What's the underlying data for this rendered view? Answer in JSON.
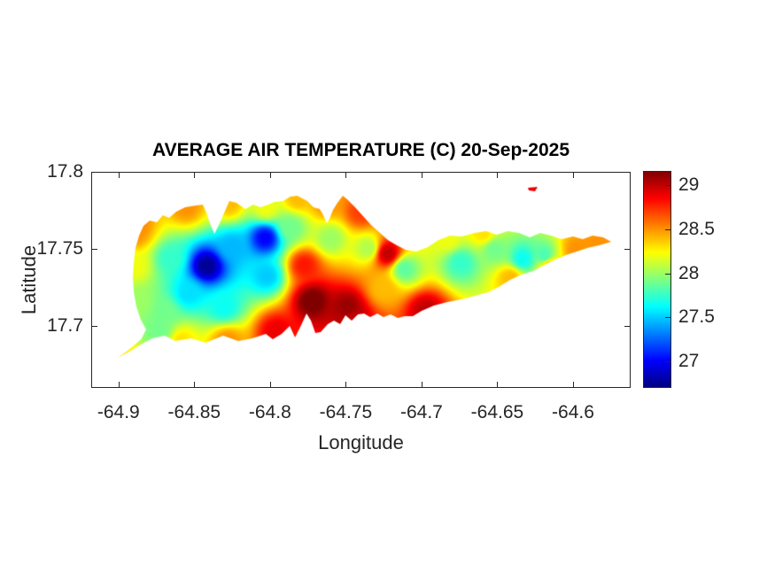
{
  "figure": {
    "title": "AVERAGE AIR TEMPERATURE (C) 20-Sep-2025",
    "background": "#ffffff"
  },
  "axes": {
    "xlabel": "Longitude",
    "ylabel": "Latitude",
    "xlim": [
      -64.918,
      -64.562
    ],
    "ylim": [
      17.66,
      17.8
    ],
    "xticks": [
      -64.9,
      -64.85,
      -64.8,
      -64.75,
      -64.7,
      -64.65,
      -64.6
    ],
    "xtick_labels": [
      "-64.9",
      "-64.85",
      "-64.8",
      "-64.75",
      "-64.7",
      "-64.65",
      "-64.6"
    ],
    "yticks": [
      17.8,
      17.75,
      17.7
    ],
    "ytick_labels": [
      "17.8",
      "17.75",
      "17.7"
    ],
    "axis_color": "#262626",
    "grid": false
  },
  "colorbar": {
    "colormap": "jet",
    "vmin": 26.7,
    "vmax": 29.16,
    "ticks": [
      29,
      28.5,
      28,
      27.5,
      27
    ],
    "tick_labels": [
      "29",
      "28.5",
      "28",
      "27.5",
      "27"
    ],
    "location": "right"
  },
  "chart_data": {
    "type": "heatmap",
    "title": "AVERAGE AIR TEMPERATURE (C) 20-Sep-2025",
    "xlabel": "Longitude",
    "ylabel": "Latitude",
    "units": "C",
    "value_range": [
      26.7,
      29.16
    ],
    "island_polygons": [
      [
        [
          -64.9005,
          17.6795
        ],
        [
          -64.8929,
          17.6835
        ],
        [
          -64.8853,
          17.6881
        ],
        [
          -64.8777,
          17.6921
        ],
        [
          -64.8695,
          17.6938
        ],
        [
          -64.8625,
          17.6904
        ],
        [
          -64.8519,
          17.6921
        ],
        [
          -64.8426,
          17.6893
        ],
        [
          -64.8309,
          17.6938
        ],
        [
          -64.821,
          17.6904
        ],
        [
          -64.8116,
          17.6921
        ],
        [
          -64.8028,
          17.695
        ],
        [
          -64.7982,
          17.6916
        ],
        [
          -64.7923,
          17.695
        ],
        [
          -64.787,
          17.7002
        ],
        [
          -64.7835,
          17.6927
        ],
        [
          -64.7794,
          17.7007
        ],
        [
          -64.7759,
          17.7082
        ],
        [
          -64.773,
          17.7036
        ],
        [
          -64.7701,
          17.6956
        ],
        [
          -64.7666,
          17.6961
        ],
        [
          -64.7619,
          17.7013
        ],
        [
          -64.7578,
          17.7036
        ],
        [
          -64.7537,
          17.7013
        ],
        [
          -64.7502,
          17.707
        ],
        [
          -64.7461,
          17.7036
        ],
        [
          -64.742,
          17.7076
        ],
        [
          -64.7379,
          17.7082
        ],
        [
          -64.7339,
          17.7059
        ],
        [
          -64.7292,
          17.7082
        ],
        [
          -64.7251,
          17.7059
        ],
        [
          -64.7204,
          17.7076
        ],
        [
          -64.7157,
          17.7053
        ],
        [
          -64.7111,
          17.7065
        ],
        [
          -64.7058,
          17.7065
        ],
        [
          -64.6999,
          17.7099
        ],
        [
          -64.6918,
          17.7134
        ],
        [
          -64.683,
          17.7157
        ],
        [
          -64.6736,
          17.7174
        ],
        [
          -64.6649,
          17.7197
        ],
        [
          -64.6561,
          17.722
        ],
        [
          -64.6491,
          17.7254
        ],
        [
          -64.6415,
          17.73
        ],
        [
          -64.6339,
          17.7334
        ],
        [
          -64.6263,
          17.7357
        ],
        [
          -64.6187,
          17.7398
        ],
        [
          -64.6117,
          17.7432
        ],
        [
          -64.6047,
          17.7461
        ],
        [
          -64.5976,
          17.7484
        ],
        [
          -64.5906,
          17.7507
        ],
        [
          -64.583,
          17.7524
        ],
        [
          -64.5748,
          17.7547
        ],
        [
          -64.5801,
          17.7575
        ],
        [
          -64.5871,
          17.7587
        ],
        [
          -64.5936,
          17.7564
        ],
        [
          -64.6,
          17.7581
        ],
        [
          -64.6076,
          17.7564
        ],
        [
          -64.6146,
          17.7587
        ],
        [
          -64.6216,
          17.7604
        ],
        [
          -64.6286,
          17.7575
        ],
        [
          -64.6356,
          17.7604
        ],
        [
          -64.6432,
          17.7616
        ],
        [
          -64.6503,
          17.7593
        ],
        [
          -64.6573,
          17.7616
        ],
        [
          -64.6649,
          17.7604
        ],
        [
          -64.6736,
          17.7581
        ],
        [
          -64.6812,
          17.7587
        ],
        [
          -64.6888,
          17.7558
        ],
        [
          -64.6959,
          17.7512
        ],
        [
          -64.7035,
          17.7484
        ],
        [
          -64.7105,
          17.7495
        ],
        [
          -64.7163,
          17.7524
        ],
        [
          -64.7222,
          17.7558
        ],
        [
          -64.7274,
          17.7604
        ],
        [
          -64.7333,
          17.7656
        ],
        [
          -64.7391,
          17.7719
        ],
        [
          -64.7444,
          17.7776
        ],
        [
          -64.7491,
          17.7822
        ],
        [
          -64.752,
          17.7845
        ],
        [
          -64.7555,
          17.7799
        ],
        [
          -64.7584,
          17.7753
        ],
        [
          -64.7607,
          17.7696
        ],
        [
          -64.7625,
          17.7667
        ],
        [
          -64.7648,
          17.7719
        ],
        [
          -64.7672,
          17.7759
        ],
        [
          -64.7713,
          17.777
        ],
        [
          -64.7754,
          17.7811
        ],
        [
          -64.782,
          17.7845
        ],
        [
          -64.7867,
          17.7839
        ],
        [
          -64.7914,
          17.7811
        ],
        [
          -64.7972,
          17.7805
        ],
        [
          -64.8011,
          17.7788
        ],
        [
          -64.8063,
          17.777
        ],
        [
          -64.811,
          17.7788
        ],
        [
          -64.8163,
          17.7759
        ],
        [
          -64.8221,
          17.7799
        ],
        [
          -64.8268,
          17.7811
        ],
        [
          -64.8297,
          17.7748
        ],
        [
          -64.8332,
          17.7667
        ],
        [
          -64.8367,
          17.7598
        ],
        [
          -64.8397,
          17.7667
        ],
        [
          -64.842,
          17.7736
        ],
        [
          -64.8443,
          17.7788
        ],
        [
          -64.849,
          17.7782
        ],
        [
          -64.856,
          17.777
        ],
        [
          -64.8619,
          17.7742
        ],
        [
          -64.8666,
          17.7702
        ],
        [
          -64.8707,
          17.7719
        ],
        [
          -64.8747,
          17.7673
        ],
        [
          -64.8794,
          17.7684
        ],
        [
          -64.8835,
          17.765
        ],
        [
          -64.8864,
          17.7587
        ],
        [
          -64.8888,
          17.7507
        ],
        [
          -64.8899,
          17.7415
        ],
        [
          -64.8905,
          17.7317
        ],
        [
          -64.8899,
          17.722
        ],
        [
          -64.8882,
          17.7128
        ],
        [
          -64.8853,
          17.7042
        ],
        [
          -64.8818,
          17.6979
        ],
        [
          -64.885,
          17.6916
        ],
        [
          -64.894,
          17.6841
        ]
      ],
      [
        [
          -64.6298,
          17.7897
        ],
        [
          -64.6234,
          17.7902
        ],
        [
          -64.6251,
          17.7874
        ],
        [
          -64.6292,
          17.788
        ]
      ]
    ],
    "temperature_points": [
      [
        -64.8917,
        17.7667,
        28.6
      ],
      [
        -64.8894,
        17.7392,
        28.2
      ],
      [
        -64.8876,
        17.7162,
        28.0
      ],
      [
        -64.8993,
        17.6812,
        28.3
      ],
      [
        -64.873,
        17.6973,
        27.9
      ],
      [
        -64.8555,
        17.7776,
        28.5
      ],
      [
        -64.8274,
        17.7799,
        28.4
      ],
      [
        -64.8028,
        17.777,
        28.2
      ],
      [
        -64.7818,
        17.7834,
        28.4
      ],
      [
        -64.842,
        17.7392,
        26.75
      ],
      [
        -64.8034,
        17.7575,
        27.0
      ],
      [
        -64.8251,
        17.7518,
        27.45
      ],
      [
        -64.8543,
        17.7214,
        27.55
      ],
      [
        -64.8309,
        17.7128,
        27.65
      ],
      [
        -64.8022,
        17.7329,
        27.5
      ],
      [
        -64.866,
        17.7443,
        27.75
      ],
      [
        -64.7867,
        17.7644,
        27.9
      ],
      [
        -64.7602,
        17.757,
        28.0
      ],
      [
        -64.8695,
        17.7093,
        27.9
      ],
      [
        -64.7724,
        17.7168,
        29.2
      ],
      [
        -64.7491,
        17.7128,
        29.1
      ],
      [
        -64.7777,
        17.7398,
        28.8
      ],
      [
        -64.7964,
        17.6967,
        28.9
      ],
      [
        -64.8286,
        17.6904,
        28.5
      ],
      [
        -64.6976,
        17.7105,
        29.0
      ],
      [
        -64.7227,
        17.7472,
        29.0
      ],
      [
        -64.7405,
        17.7742,
        28.7
      ],
      [
        -64.7257,
        17.7243,
        28.4
      ],
      [
        -64.7116,
        17.7375,
        27.85
      ],
      [
        -64.6742,
        17.7415,
        27.75
      ],
      [
        -64.652,
        17.7501,
        27.9
      ],
      [
        -64.6333,
        17.7438,
        27.65
      ],
      [
        -64.6193,
        17.7461,
        27.8
      ],
      [
        -64.683,
        17.757,
        28.2
      ],
      [
        -64.6596,
        17.7604,
        28.3
      ],
      [
        -64.6415,
        17.7317,
        28.4
      ],
      [
        -64.6158,
        17.7392,
        28.4
      ],
      [
        -64.5982,
        17.7495,
        28.5
      ],
      [
        -64.583,
        17.7547,
        28.5
      ],
      [
        -64.7455,
        17.7042,
        29.0
      ],
      [
        -64.7631,
        17.7805,
        28.5
      ],
      [
        -64.6263,
        17.7891,
        28.9
      ],
      [
        -64.7356,
        17.7507,
        28.05
      ],
      [
        -64.8899,
        17.761,
        28.5
      ],
      [
        -64.8584,
        17.691,
        28.3
      ]
    ]
  }
}
